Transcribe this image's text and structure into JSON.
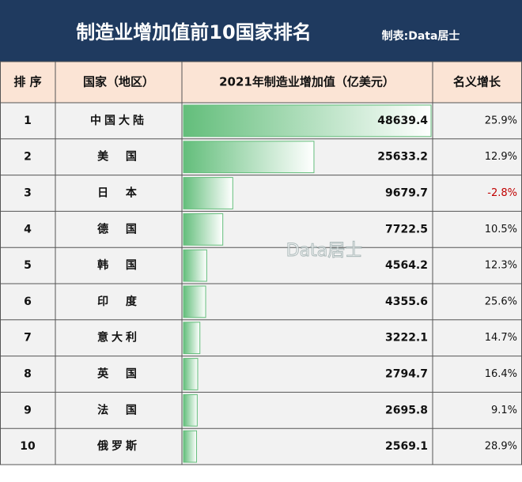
{
  "header": {
    "title": "制造业增加值前10国家排名",
    "subtitle": "制表:Data居士"
  },
  "table": {
    "columns": [
      "排 序",
      "国家（地区）",
      "2021年制造业增加值（亿美元）",
      "名义增长"
    ],
    "rows": [
      [
        "1",
        "中国大陆",
        48639.4,
        "25.9%"
      ],
      [
        "2",
        "美  国",
        25633.2,
        "12.9%"
      ],
      [
        "3",
        "日  本",
        9679.7,
        "-2.8%"
      ],
      [
        "4",
        "德  国",
        7722.5,
        "10.5%"
      ],
      [
        "5",
        "韩  国",
        4564.2,
        "12.3%"
      ],
      [
        "6",
        "印  度",
        4355.6,
        "25.6%"
      ],
      [
        "7",
        "意大利",
        3222.1,
        "14.7%"
      ],
      [
        "8",
        "英  国",
        2794.7,
        "16.4%"
      ],
      [
        "9",
        "法  国",
        2695.8,
        "9.1%"
      ],
      [
        "10",
        "俄罗斯",
        2569.1,
        "28.9%"
      ]
    ]
  },
  "watermark": "Data居士"
}
